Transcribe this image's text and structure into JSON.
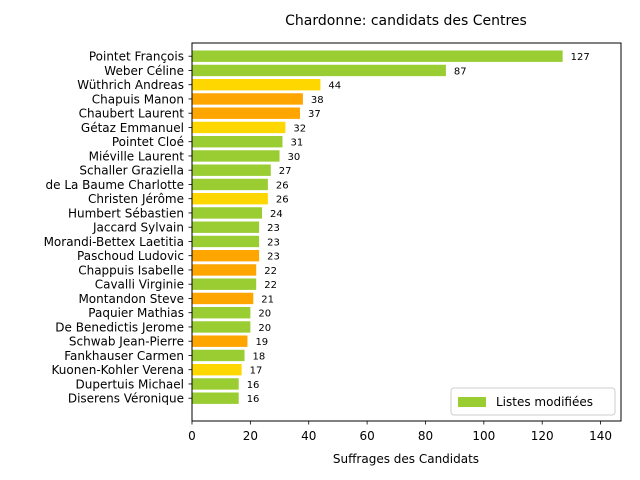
{
  "chart_data": {
    "type": "bar",
    "orientation": "horizontal",
    "title": "Chardonne: candidats des Centres",
    "xlabel": "Suffrages des Candidats",
    "ylabel": "",
    "xlim": [
      0,
      147
    ],
    "xticks": [
      0,
      20,
      40,
      60,
      80,
      100,
      120,
      140
    ],
    "grid": false,
    "legend": {
      "position": "lower-right",
      "entries": [
        {
          "label": "Listes modifiées",
          "color": "#9acd32"
        }
      ]
    },
    "colors": {
      "green": "#9acd32",
      "orange": "#ffa500",
      "yellow": "#ffd700"
    },
    "categories": [
      "Pointet François",
      "Weber Céline",
      "Wüthrich Andreas",
      "Chapuis Manon",
      "Chaubert Laurent",
      "Gétaz Emmanuel",
      "Pointet Cloé",
      "Miéville Laurent",
      "Schaller Graziella",
      "de La Baume Charlotte",
      "Christen Jérôme",
      "Humbert Sébastien",
      "Jaccard Sylvain",
      "Morandi-Bettex Laetitia",
      "Paschoud Ludovic",
      "Chappuis Isabelle",
      "Cavalli Virginie",
      "Montandon Steve",
      "Paquier Mathias",
      "De Benedictis Jerome",
      "Schwab Jean-Pierre",
      "Fankhauser Carmen",
      "Kuonen-Kohler Verena",
      "Dupertuis Michael",
      "Diserens Véronique"
    ],
    "values": [
      127,
      87,
      44,
      38,
      37,
      32,
      31,
      30,
      27,
      26,
      26,
      24,
      23,
      23,
      23,
      22,
      22,
      21,
      20,
      20,
      19,
      18,
      17,
      16,
      16
    ],
    "bar_colors": [
      "green",
      "green",
      "yellow",
      "orange",
      "orange",
      "yellow",
      "green",
      "green",
      "green",
      "green",
      "yellow",
      "green",
      "green",
      "green",
      "orange",
      "orange",
      "green",
      "orange",
      "green",
      "green",
      "orange",
      "green",
      "yellow",
      "green",
      "green"
    ]
  }
}
